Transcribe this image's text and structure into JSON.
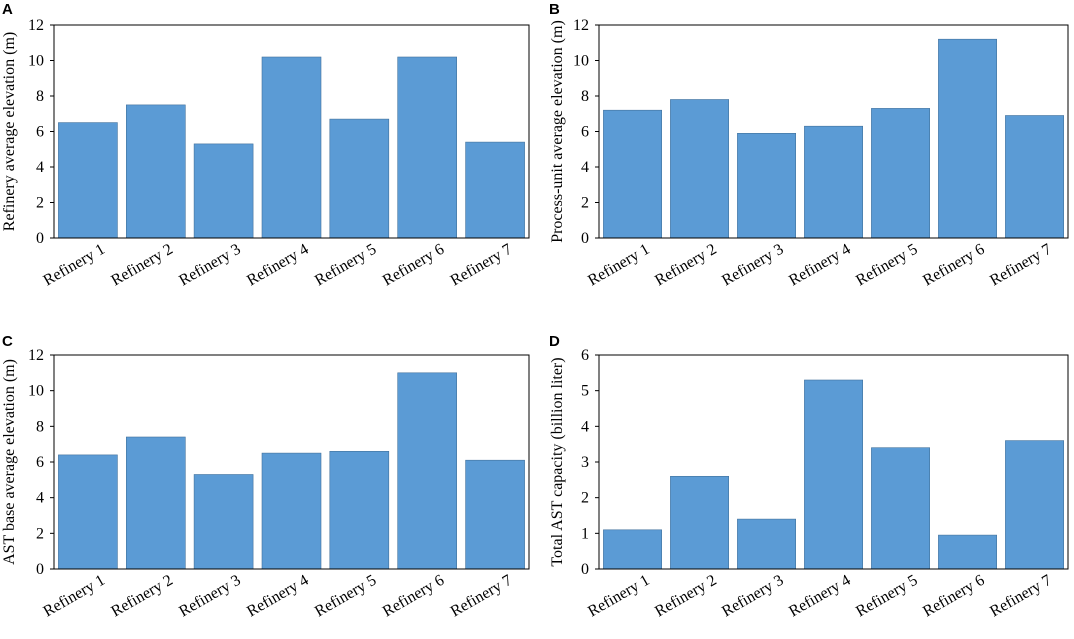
{
  "chart_data": [
    {
      "panel": "A",
      "type": "bar",
      "categories": [
        "Refinery 1",
        "Refinery 2",
        "Refinery 3",
        "Refinery 4",
        "Refinery 5",
        "Refinery 6",
        "Refinery 7"
      ],
      "values": [
        6.5,
        7.5,
        5.3,
        10.2,
        6.7,
        10.2,
        5.4
      ],
      "title": "",
      "xlabel": "",
      "ylabel": "Refinery average elevation (m)",
      "ylim": [
        0,
        12
      ],
      "yticks": [
        0,
        2,
        4,
        6,
        8,
        10,
        12
      ],
      "grid": false,
      "color": "#5b9bd5"
    },
    {
      "panel": "B",
      "type": "bar",
      "categories": [
        "Refinery 1",
        "Refinery 2",
        "Refinery 3",
        "Refinery 4",
        "Refinery 5",
        "Refinery 6",
        "Refinery 7"
      ],
      "values": [
        7.2,
        7.8,
        5.9,
        6.3,
        7.3,
        11.2,
        6.9
      ],
      "title": "",
      "xlabel": "",
      "ylabel": "Process-unit average elevation (m)",
      "ylim": [
        0,
        12
      ],
      "yticks": [
        0,
        2,
        4,
        6,
        8,
        10,
        12
      ],
      "grid": false,
      "color": "#5b9bd5"
    },
    {
      "panel": "C",
      "type": "bar",
      "categories": [
        "Refinery 1",
        "Refinery 2",
        "Refinery 3",
        "Refinery 4",
        "Refinery 5",
        "Refinery 6",
        "Refinery 7"
      ],
      "values": [
        6.4,
        7.4,
        5.3,
        6.5,
        6.6,
        11.0,
        6.1
      ],
      "title": "",
      "xlabel": "",
      "ylabel": "AST base average elevation (m)",
      "ylim": [
        0,
        12
      ],
      "yticks": [
        0,
        2,
        4,
        6,
        8,
        10,
        12
      ],
      "grid": false,
      "color": "#5b9bd5"
    },
    {
      "panel": "D",
      "type": "bar",
      "categories": [
        "Refinery 1",
        "Refinery 2",
        "Refinery 3",
        "Refinery 4",
        "Refinery 5",
        "Refinery 6",
        "Refinery 7"
      ],
      "values": [
        1.1,
        2.6,
        1.4,
        5.3,
        3.4,
        0.95,
        3.6
      ],
      "title": "",
      "xlabel": "",
      "ylabel": "Total AST capacity (billion liter)",
      "ylim": [
        0,
        6
      ],
      "yticks": [
        0,
        1,
        2,
        3,
        4,
        5,
        6
      ],
      "grid": false,
      "color": "#5b9bd5"
    }
  ]
}
